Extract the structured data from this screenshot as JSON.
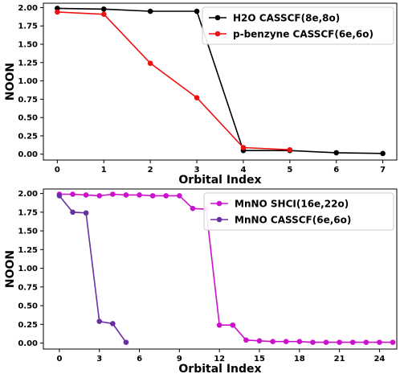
{
  "chart_data": [
    {
      "type": "line",
      "xlabel": "Orbital Index",
      "ylabel": "NOON",
      "xlim": [
        -0.3,
        7.3
      ],
      "ylim": [
        -0.08,
        2.06
      ],
      "xticks": [
        0,
        1,
        2,
        3,
        4,
        5,
        6,
        7
      ],
      "yticks": [
        0.0,
        0.25,
        0.5,
        0.75,
        1.0,
        1.25,
        1.5,
        1.75,
        2.0
      ],
      "grid": false,
      "legend_position": "top-right",
      "series": [
        {
          "name": "H2O CASSCF(8e,8o)",
          "color": "#000000",
          "x": [
            0,
            1,
            2,
            3,
            4,
            5,
            6,
            7
          ],
          "y": [
            1.99,
            1.98,
            1.95,
            1.95,
            0.05,
            0.05,
            0.02,
            0.01
          ]
        },
        {
          "name": "p-benzyne CASSCF(6e,6o)",
          "color": "#ee1111",
          "x": [
            0,
            1,
            2,
            3,
            4,
            5
          ],
          "y": [
            1.94,
            1.91,
            1.24,
            0.77,
            0.09,
            0.06
          ]
        }
      ]
    },
    {
      "type": "line",
      "xlabel": "Orbital Index",
      "ylabel": "NOON",
      "xlim": [
        -1.2,
        25.3
      ],
      "ylim": [
        -0.08,
        2.06
      ],
      "xticks": [
        0,
        3,
        6,
        9,
        12,
        15,
        18,
        21,
        24
      ],
      "yticks": [
        0.0,
        0.25,
        0.5,
        0.75,
        1.0,
        1.25,
        1.5,
        1.75,
        2.0
      ],
      "grid": false,
      "legend_position": "top-right",
      "series": [
        {
          "name": "MnNO SHCI(16e,22o)",
          "color": "#cc11cc",
          "x": [
            0,
            1,
            2,
            3,
            4,
            5,
            6,
            7,
            8,
            9,
            10,
            11,
            12,
            13,
            14,
            15,
            16,
            17,
            18,
            19,
            20,
            21,
            22,
            23,
            24,
            25
          ],
          "y": [
            1.99,
            1.99,
            1.98,
            1.97,
            1.99,
            1.98,
            1.98,
            1.97,
            1.97,
            1.97,
            1.8,
            1.79,
            0.24,
            0.24,
            0.04,
            0.03,
            0.02,
            0.02,
            0.02,
            0.01,
            0.01,
            0.01,
            0.01,
            0.01,
            0.01,
            0.01
          ]
        },
        {
          "name": "MnNO CASSCF(6e,6o)",
          "color": "#6a2fa0",
          "x": [
            0,
            1,
            2,
            3,
            4,
            5
          ],
          "y": [
            1.97,
            1.75,
            1.74,
            0.29,
            0.26,
            0.01
          ]
        }
      ]
    }
  ]
}
